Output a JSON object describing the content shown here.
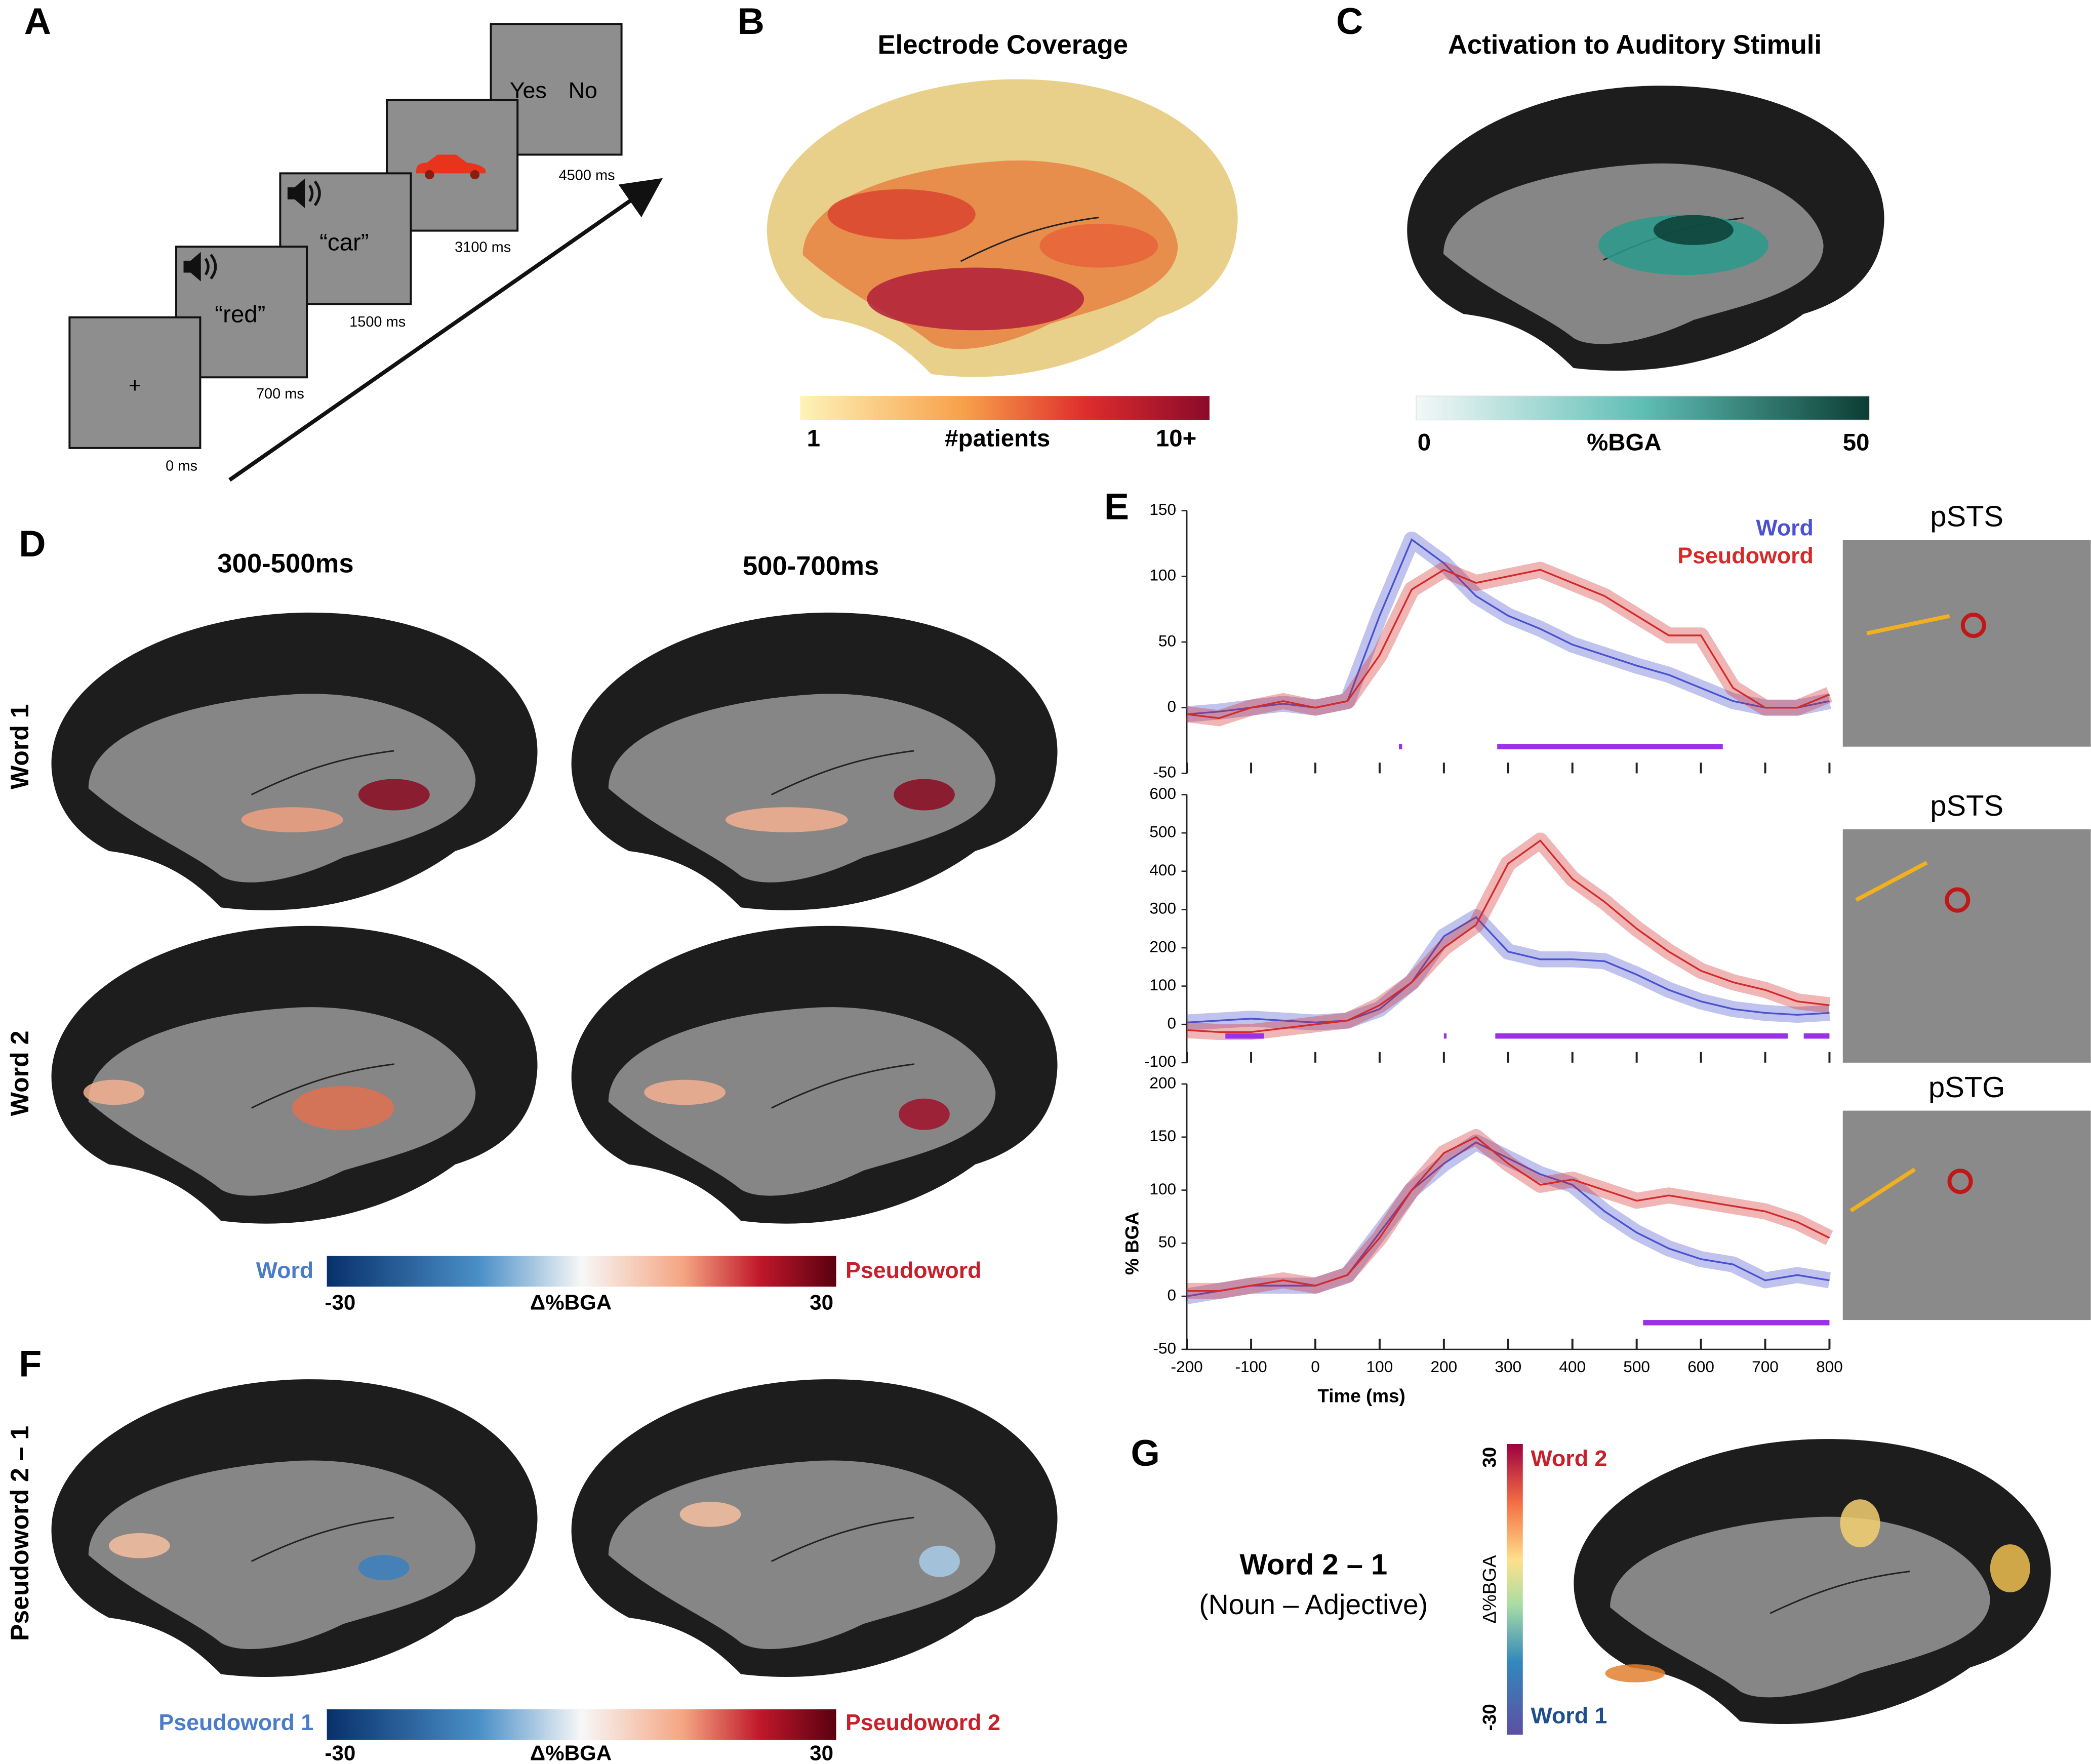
{
  "panels": {
    "A": {
      "letter": "A",
      "screens": [
        {
          "text": "+",
          "time": "0 ms"
        },
        {
          "text": "“red”",
          "time": "700 ms"
        },
        {
          "text": "“car”",
          "time": "1500 ms"
        },
        {
          "time": "3100 ms"
        },
        {
          "options": [
            "Yes",
            "No"
          ],
          "time": "4500 ms"
        }
      ]
    },
    "B": {
      "letter": "B",
      "title": "Electrode Coverage",
      "colorbar": {
        "min_label": "1",
        "label": "#patients",
        "max_label": "10+"
      }
    },
    "C": {
      "letter": "C",
      "title": "Activation to Auditory Stimuli",
      "colorbar": {
        "min_label": "0",
        "label": "%BGA",
        "max_label": "50"
      }
    },
    "D": {
      "letter": "D",
      "columns": [
        "300-500ms",
        "500-700ms"
      ],
      "rows": [
        "Word 1",
        "Word 2"
      ],
      "colorbar": {
        "left_label": "Word",
        "right_label": "Pseudoword",
        "min_label": "-30",
        "label": "Δ%BGA",
        "max_label": "30"
      }
    },
    "E": {
      "letter": "E",
      "electrode_labels": [
        "pSTS",
        "pSTS",
        "pSTG"
      ]
    },
    "F": {
      "letter": "F",
      "row": "Pseudoword 2 – 1",
      "colorbar": {
        "left_label": "Pseudoword 1",
        "right_label": "Pseudoword 2",
        "min_label": "-30",
        "label": "Δ%BGA",
        "max_label": "30"
      }
    },
    "G": {
      "letter": "G",
      "title": "Word 2 – 1",
      "subtitle": "(Noun – Adjective)",
      "colorbar": {
        "top_label": "Word 2",
        "bottom_label": "Word 1",
        "max_label": "30",
        "label": "Δ%BGA",
        "min_label": "-30"
      }
    }
  },
  "chart_data": [
    {
      "type": "line",
      "legend": "upper right",
      "xtick_labels": false,
      "x": [
        -200,
        -150,
        -100,
        -50,
        0,
        50,
        100,
        150,
        200,
        250,
        300,
        350,
        400,
        450,
        500,
        550,
        600,
        650,
        700,
        750,
        800
      ],
      "xlim": [
        -200,
        800
      ],
      "xticks": [
        -200,
        -100,
        0,
        100,
        200,
        300,
        400,
        500,
        600,
        700,
        800
      ],
      "ylim": [
        -50,
        150
      ],
      "yticks": [
        -50,
        0,
        50,
        100,
        150
      ],
      "series": [
        {
          "name": "Word",
          "color": "#4a52cf",
          "values": [
            -5,
            -3,
            0,
            3,
            0,
            5,
            70,
            128,
            110,
            85,
            70,
            60,
            48,
            40,
            32,
            25,
            15,
            5,
            0,
            0,
            5
          ]
        },
        {
          "name": "Pseudoword",
          "color": "#d42a2a",
          "values": [
            -5,
            -8,
            0,
            5,
            0,
            5,
            40,
            90,
            105,
            95,
            100,
            105,
            95,
            85,
            70,
            55,
            55,
            15,
            0,
            0,
            10
          ]
        }
      ],
      "significance": [
        [
          130,
          135
        ],
        [
          283,
          634
        ]
      ],
      "significance_color": "#9b30e6"
    },
    {
      "type": "line",
      "xtick_labels": false,
      "x": [
        -200,
        -150,
        -100,
        -50,
        0,
        50,
        100,
        150,
        200,
        250,
        300,
        350,
        400,
        450,
        500,
        550,
        600,
        650,
        700,
        750,
        800
      ],
      "xlim": [
        -200,
        800
      ],
      "xticks": [
        -200,
        -100,
        0,
        100,
        200,
        300,
        400,
        500,
        600,
        700,
        800
      ],
      "ylim": [
        -100,
        600
      ],
      "yticks": [
        -100,
        0,
        100,
        200,
        300,
        400,
        500,
        600
      ],
      "series": [
        {
          "color": "#4a52cf",
          "values": [
            5,
            10,
            15,
            10,
            5,
            10,
            40,
            110,
            230,
            280,
            190,
            170,
            170,
            165,
            130,
            90,
            60,
            40,
            30,
            25,
            30
          ]
        },
        {
          "color": "#d42a2a",
          "values": [
            -15,
            -20,
            -20,
            -10,
            0,
            10,
            50,
            110,
            200,
            260,
            420,
            480,
            380,
            320,
            250,
            190,
            140,
            110,
            90,
            60,
            50
          ]
        }
      ],
      "significance": [
        [
          -140,
          -80
        ],
        [
          200,
          203
        ],
        [
          280,
          735
        ],
        [
          760,
          800
        ]
      ],
      "significance_color": "#9b30e6"
    },
    {
      "type": "line",
      "xtick_labels": true,
      "xlabel": "Time (ms)",
      "ylabel": "% BGA",
      "x": [
        -200,
        -150,
        -100,
        -50,
        0,
        50,
        100,
        150,
        200,
        250,
        300,
        350,
        400,
        450,
        500,
        550,
        600,
        650,
        700,
        750,
        800
      ],
      "xlim": [
        -200,
        800
      ],
      "xticks": [
        -200,
        -100,
        0,
        100,
        200,
        300,
        400,
        500,
        600,
        700,
        800
      ],
      "ylim": [
        -50,
        200
      ],
      "yticks": [
        -50,
        0,
        50,
        100,
        150,
        200
      ],
      "series": [
        {
          "color": "#4a52cf",
          "values": [
            0,
            5,
            10,
            10,
            10,
            20,
            60,
            100,
            125,
            145,
            130,
            115,
            105,
            80,
            60,
            45,
            35,
            30,
            15,
            20,
            15
          ]
        },
        {
          "color": "#d42a2a",
          "values": [
            5,
            5,
            10,
            15,
            10,
            20,
            55,
            100,
            135,
            150,
            125,
            105,
            110,
            100,
            90,
            95,
            90,
            85,
            80,
            70,
            55
          ]
        }
      ],
      "significance": [
        [
          510,
          800
        ]
      ],
      "significance_color": "#9b30e6"
    }
  ]
}
